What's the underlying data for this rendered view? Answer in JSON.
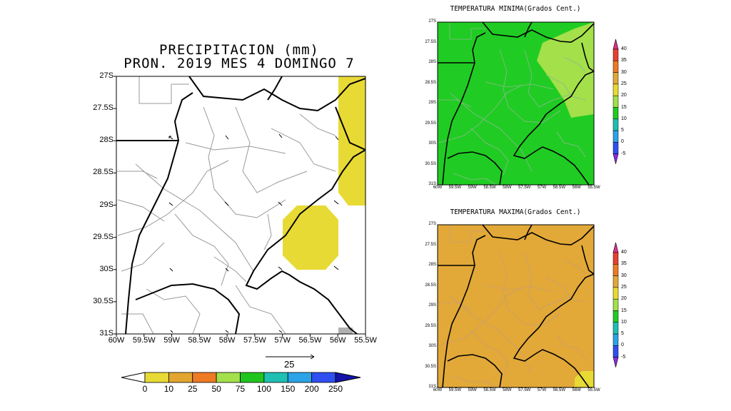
{
  "main_map": {
    "title_line1": "PRECIPITACION (mm)",
    "title_line2": "PRON. 2019 MES 4 DOMINGO 7",
    "lat_ticks": [
      "27S",
      "27.5S",
      "28S",
      "28.5S",
      "29S",
      "29.5S",
      "30S",
      "30.5S",
      "31S"
    ],
    "lon_ticks": [
      "60W",
      "59.5W",
      "59W",
      "58.5W",
      "58W",
      "57.5W",
      "57W",
      "56.5W",
      "56W",
      "55.5W"
    ],
    "vector_ref_label": "25",
    "colors": {
      "yellow": "#e8da34",
      "grey": "#b0b0b0"
    }
  },
  "main_colorbar": {
    "labels": [
      "0",
      "10",
      "25",
      "50",
      "75",
      "100",
      "150",
      "200",
      "250"
    ],
    "colors": [
      "#ffffff",
      "#e8da34",
      "#e2a52f",
      "#ee7a24",
      "#a3e04a",
      "#20c41e",
      "#1fbfb3",
      "#2ba3e6",
      "#2f4ff0",
      "#1414a8"
    ]
  },
  "min_map": {
    "title": "TEMPERATURA MINIMA(Grados Cent.)",
    "fill": "#20cc23",
    "highlight": "#a3e04a",
    "lat_ticks": [
      "27S",
      "27.5S",
      "28S",
      "28.5S",
      "29S",
      "29.5S",
      "30S",
      "30.5S",
      "31S"
    ],
    "lon_ticks": [
      "60W",
      "59.5W",
      "59W",
      "58.5W",
      "58W",
      "57.5W",
      "57W",
      "56.5W",
      "56W",
      "55.5W"
    ]
  },
  "max_map": {
    "title": "TEMPERATURA MAXIMA(Grados Cent.)",
    "fill": "#e2a838",
    "highlight": "#e8da34",
    "lat_ticks": [
      "27S",
      "27.5S",
      "28S",
      "28.5S",
      "29S",
      "29.5S",
      "30S",
      "30.5S",
      "31S"
    ],
    "lon_ticks": [
      "60W",
      "59.5W",
      "59W",
      "58.5W",
      "58W",
      "57.5W",
      "57W",
      "56.5W",
      "56W",
      "55.5W"
    ]
  },
  "temp_colorbar": {
    "labels": [
      "40",
      "35",
      "30",
      "25",
      "20",
      "15",
      "10",
      "5",
      "0",
      "-5"
    ],
    "colors": [
      "#e0308c",
      "#e84030",
      "#ee7a24",
      "#e2a838",
      "#e8da34",
      "#a3e04a",
      "#20cc23",
      "#1fbfb3",
      "#2ba3e6",
      "#2f4ff0",
      "#8a2be2"
    ]
  }
}
